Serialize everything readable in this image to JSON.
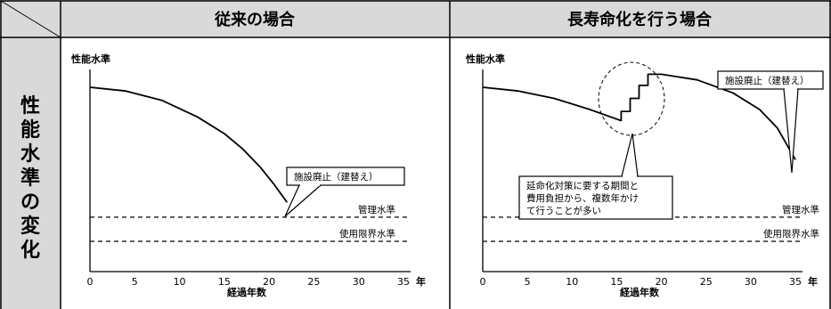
{
  "table": {
    "header_left": "従来の場合",
    "header_right": "長寿命化を行う場合",
    "row_label": "性能水準の変化"
  },
  "chart_data": [
    {
      "type": "line",
      "title": "従来の場合",
      "ylabel": "性能水準",
      "xlabel": "経過年数",
      "xunit": "年",
      "xlim": [
        0,
        35
      ],
      "xticks": [
        0,
        5,
        10,
        15,
        20,
        25,
        30,
        35
      ],
      "ylim": [
        0,
        100
      ],
      "grid": false,
      "series": [
        {
          "x": [
            0,
            4,
            8,
            12,
            15,
            17,
            19,
            20.5,
            22
          ],
          "y": [
            95,
            93,
            88,
            79,
            70,
            62,
            52,
            43,
            33
          ]
        }
      ],
      "reference_lines": [
        {
          "label": "管理水準",
          "y": 25,
          "style": "dashed"
        },
        {
          "label": "使用限界水準",
          "y": 12,
          "style": "dashed"
        }
      ],
      "annotations": [
        {
          "text": "施設廃止（建替え）",
          "x": 22,
          "y": 33
        }
      ]
    },
    {
      "type": "line",
      "title": "長寿命化を行う場合",
      "ylabel": "性能水準",
      "xlabel": "経過年数",
      "xunit": "年",
      "xlim": [
        0,
        35
      ],
      "xticks": [
        0,
        5,
        10,
        15,
        20,
        25,
        30,
        35
      ],
      "ylim": [
        0,
        100
      ],
      "grid": false,
      "series": [
        {
          "x": [
            0,
            4,
            8,
            12,
            15.5,
            15.5,
            16.5,
            16.5,
            17.5,
            17.5,
            18.5,
            18.5,
            20,
            24,
            28,
            31,
            33,
            35
          ],
          "y": [
            95,
            93,
            89,
            83,
            77,
            82,
            82,
            89,
            89,
            96,
            96,
            102,
            102,
            99,
            92,
            83,
            73,
            56
          ]
        }
      ],
      "reference_lines": [
        {
          "label": "管理水準",
          "y": 25,
          "style": "dashed"
        },
        {
          "label": "使用限界水準",
          "y": 12,
          "style": "dashed"
        }
      ],
      "annotations": [
        {
          "text": "施設廃止（建替え）",
          "x": 35,
          "y": 56
        },
        {
          "text": "延命化対策に要する期間と費用負担から、複数年かけて行うことが多い",
          "lines": [
            "延命化対策に要する期間と",
            "費用負担から、複数年かけ",
            "て行うことが多い"
          ],
          "x": 17,
          "y": 89
        }
      ]
    }
  ]
}
